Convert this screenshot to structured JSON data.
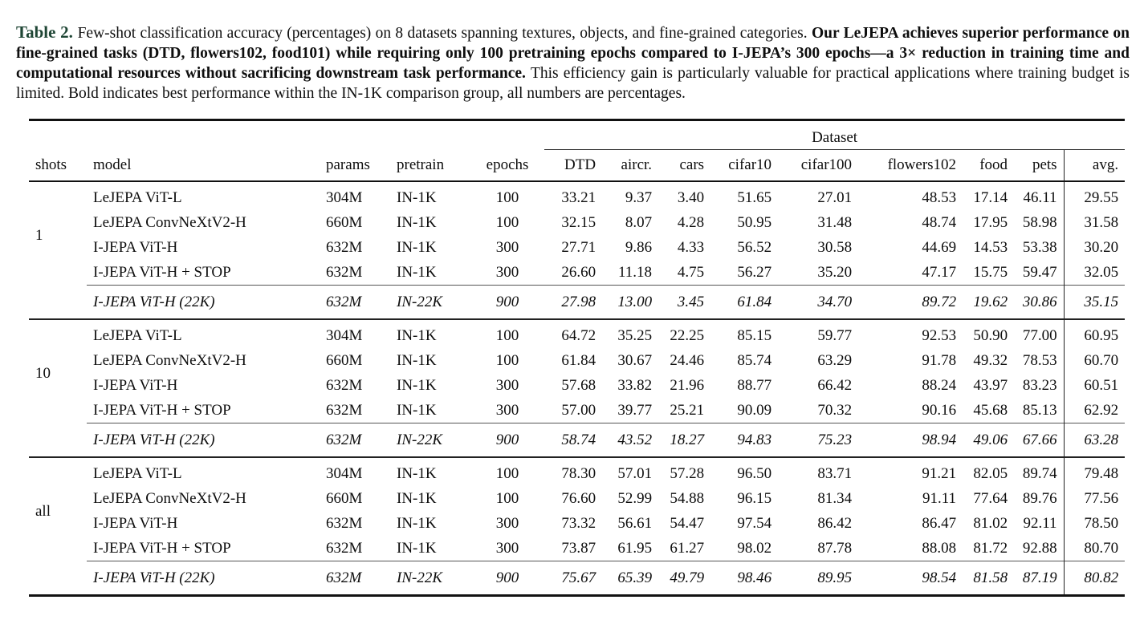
{
  "colors": {
    "caption_label": "#1f4635",
    "rule": "#111111",
    "text": "#0e0e0e"
  },
  "caption": {
    "label": "Table 2.",
    "normal_1": "Few-shot classification accuracy (percentages) on 8 datasets spanning textures, objects, and fine-grained categories.",
    "bold_claim": "Our LeJEPA achieves superior performance on fine-grained tasks (DTD, flowers102, food101) while requiring only 100 pretraining epochs compared to I-JEPA’s 300 epochs—a 3× reduction in training time and computational resources without sacrificing downstream task performance.",
    "normal_2": "This efficiency gain is particularly valuable for practical applications where training budget is limited. Bold indicates best performance within the IN-1K comparison group, all numbers are percentages."
  },
  "table": {
    "span_header": "Dataset",
    "columns": [
      "shots",
      "model",
      "params",
      "pretrain",
      "epochs",
      "DTD",
      "aircr.",
      "cars",
      "cifar10",
      "cifar100",
      "flowers102",
      "food",
      "pets",
      "avg."
    ],
    "groups": [
      {
        "shots": "1",
        "rows": [
          {
            "cells": [
              "LeJEPA ViT-L",
              "304M",
              "IN-1K",
              "100",
              "33.21",
              "9.37",
              "3.40",
              "51.65",
              "27.01",
              "48.53",
              "17.14",
              "46.11",
              "29.55"
            ],
            "bold": [
              4
            ]
          },
          {
            "cells": [
              "LeJEPA ConvNeXtV2-H",
              "660M",
              "IN-1K",
              "100",
              "32.15",
              "8.07",
              "4.28",
              "50.95",
              "31.48",
              "48.74",
              "17.95",
              "58.98",
              "31.58"
            ],
            "bold": [
              9,
              10
            ]
          },
          {
            "cells": [
              "I-JEPA ViT-H",
              "632M",
              "IN-1K",
              "300",
              "27.71",
              "9.86",
              "4.33",
              "56.52",
              "30.58",
              "44.69",
              "14.53",
              "53.38",
              "30.20"
            ],
            "bold": [
              7
            ]
          },
          {
            "cells": [
              "I-JEPA ViT-H + STOP",
              "632M",
              "IN-1K",
              "300",
              "26.60",
              "11.18",
              "4.75",
              "56.27",
              "35.20",
              "47.17",
              "15.75",
              "59.47",
              "32.05"
            ],
            "bold": [
              5,
              6,
              8,
              11
            ]
          }
        ],
        "italic": {
          "cells": [
            "I-JEPA ViT-H (22K)",
            "632M",
            "IN-22K",
            "900",
            "27.98",
            "13.00",
            "3.45",
            "61.84",
            "34.70",
            "89.72",
            "19.62",
            "30.86",
            "35.15"
          ]
        }
      },
      {
        "shots": "10",
        "rows": [
          {
            "cells": [
              "LeJEPA ViT-L",
              "304M",
              "IN-1K",
              "100",
              "64.72",
              "35.25",
              "22.25",
              "85.15",
              "59.77",
              "92.53",
              "50.90",
              "77.00",
              "60.95"
            ],
            "bold": [
              4,
              9,
              10
            ]
          },
          {
            "cells": [
              "LeJEPA ConvNeXtV2-H",
              "660M",
              "IN-1K",
              "100",
              "61.84",
              "30.67",
              "24.46",
              "85.74",
              "63.29",
              "91.78",
              "49.32",
              "78.53",
              "60.70"
            ],
            "bold": []
          },
          {
            "cells": [
              "I-JEPA ViT-H",
              "632M",
              "IN-1K",
              "300",
              "57.68",
              "33.82",
              "21.96",
              "88.77",
              "66.42",
              "88.24",
              "43.97",
              "83.23",
              "60.51"
            ],
            "bold": []
          },
          {
            "cells": [
              "I-JEPA ViT-H + STOP",
              "632M",
              "IN-1K",
              "300",
              "57.00",
              "39.77",
              "25.21",
              "90.09",
              "70.32",
              "90.16",
              "45.68",
              "85.13",
              "62.92"
            ],
            "bold": [
              5,
              6,
              7,
              8,
              11
            ]
          }
        ],
        "italic": {
          "cells": [
            "I-JEPA ViT-H (22K)",
            "632M",
            "IN-22K",
            "900",
            "58.74",
            "43.52",
            "18.27",
            "94.83",
            "75.23",
            "98.94",
            "49.06",
            "67.66",
            "63.28"
          ]
        }
      },
      {
        "shots": "all",
        "rows": [
          {
            "cells": [
              "LeJEPA ViT-L",
              "304M",
              "IN-1K",
              "100",
              "78.30",
              "57.01",
              "57.28",
              "96.50",
              "83.71",
              "91.21",
              "82.05",
              "89.74",
              "79.48"
            ],
            "bold": [
              4,
              9,
              10
            ]
          },
          {
            "cells": [
              "LeJEPA ConvNeXtV2-H",
              "660M",
              "IN-1K",
              "100",
              "76.60",
              "52.99",
              "54.88",
              "96.15",
              "81.34",
              "91.11",
              "77.64",
              "89.76",
              "77.56"
            ],
            "bold": []
          },
          {
            "cells": [
              "I-JEPA ViT-H",
              "632M",
              "IN-1K",
              "300",
              "73.32",
              "56.61",
              "54.47",
              "97.54",
              "86.42",
              "86.47",
              "81.02",
              "92.11",
              "78.50"
            ],
            "bold": []
          },
          {
            "cells": [
              "I-JEPA ViT-H + STOP",
              "632M",
              "IN-1K",
              "300",
              "73.87",
              "61.95",
              "61.27",
              "98.02",
              "87.78",
              "88.08",
              "81.72",
              "92.88",
              "80.70"
            ],
            "bold": [
              5,
              6,
              7,
              8,
              11
            ]
          }
        ],
        "italic": {
          "cells": [
            "I-JEPA ViT-H (22K)",
            "632M",
            "IN-22K",
            "900",
            "75.67",
            "65.39",
            "49.79",
            "98.46",
            "89.95",
            "98.54",
            "81.58",
            "87.19",
            "80.82"
          ]
        }
      }
    ]
  }
}
